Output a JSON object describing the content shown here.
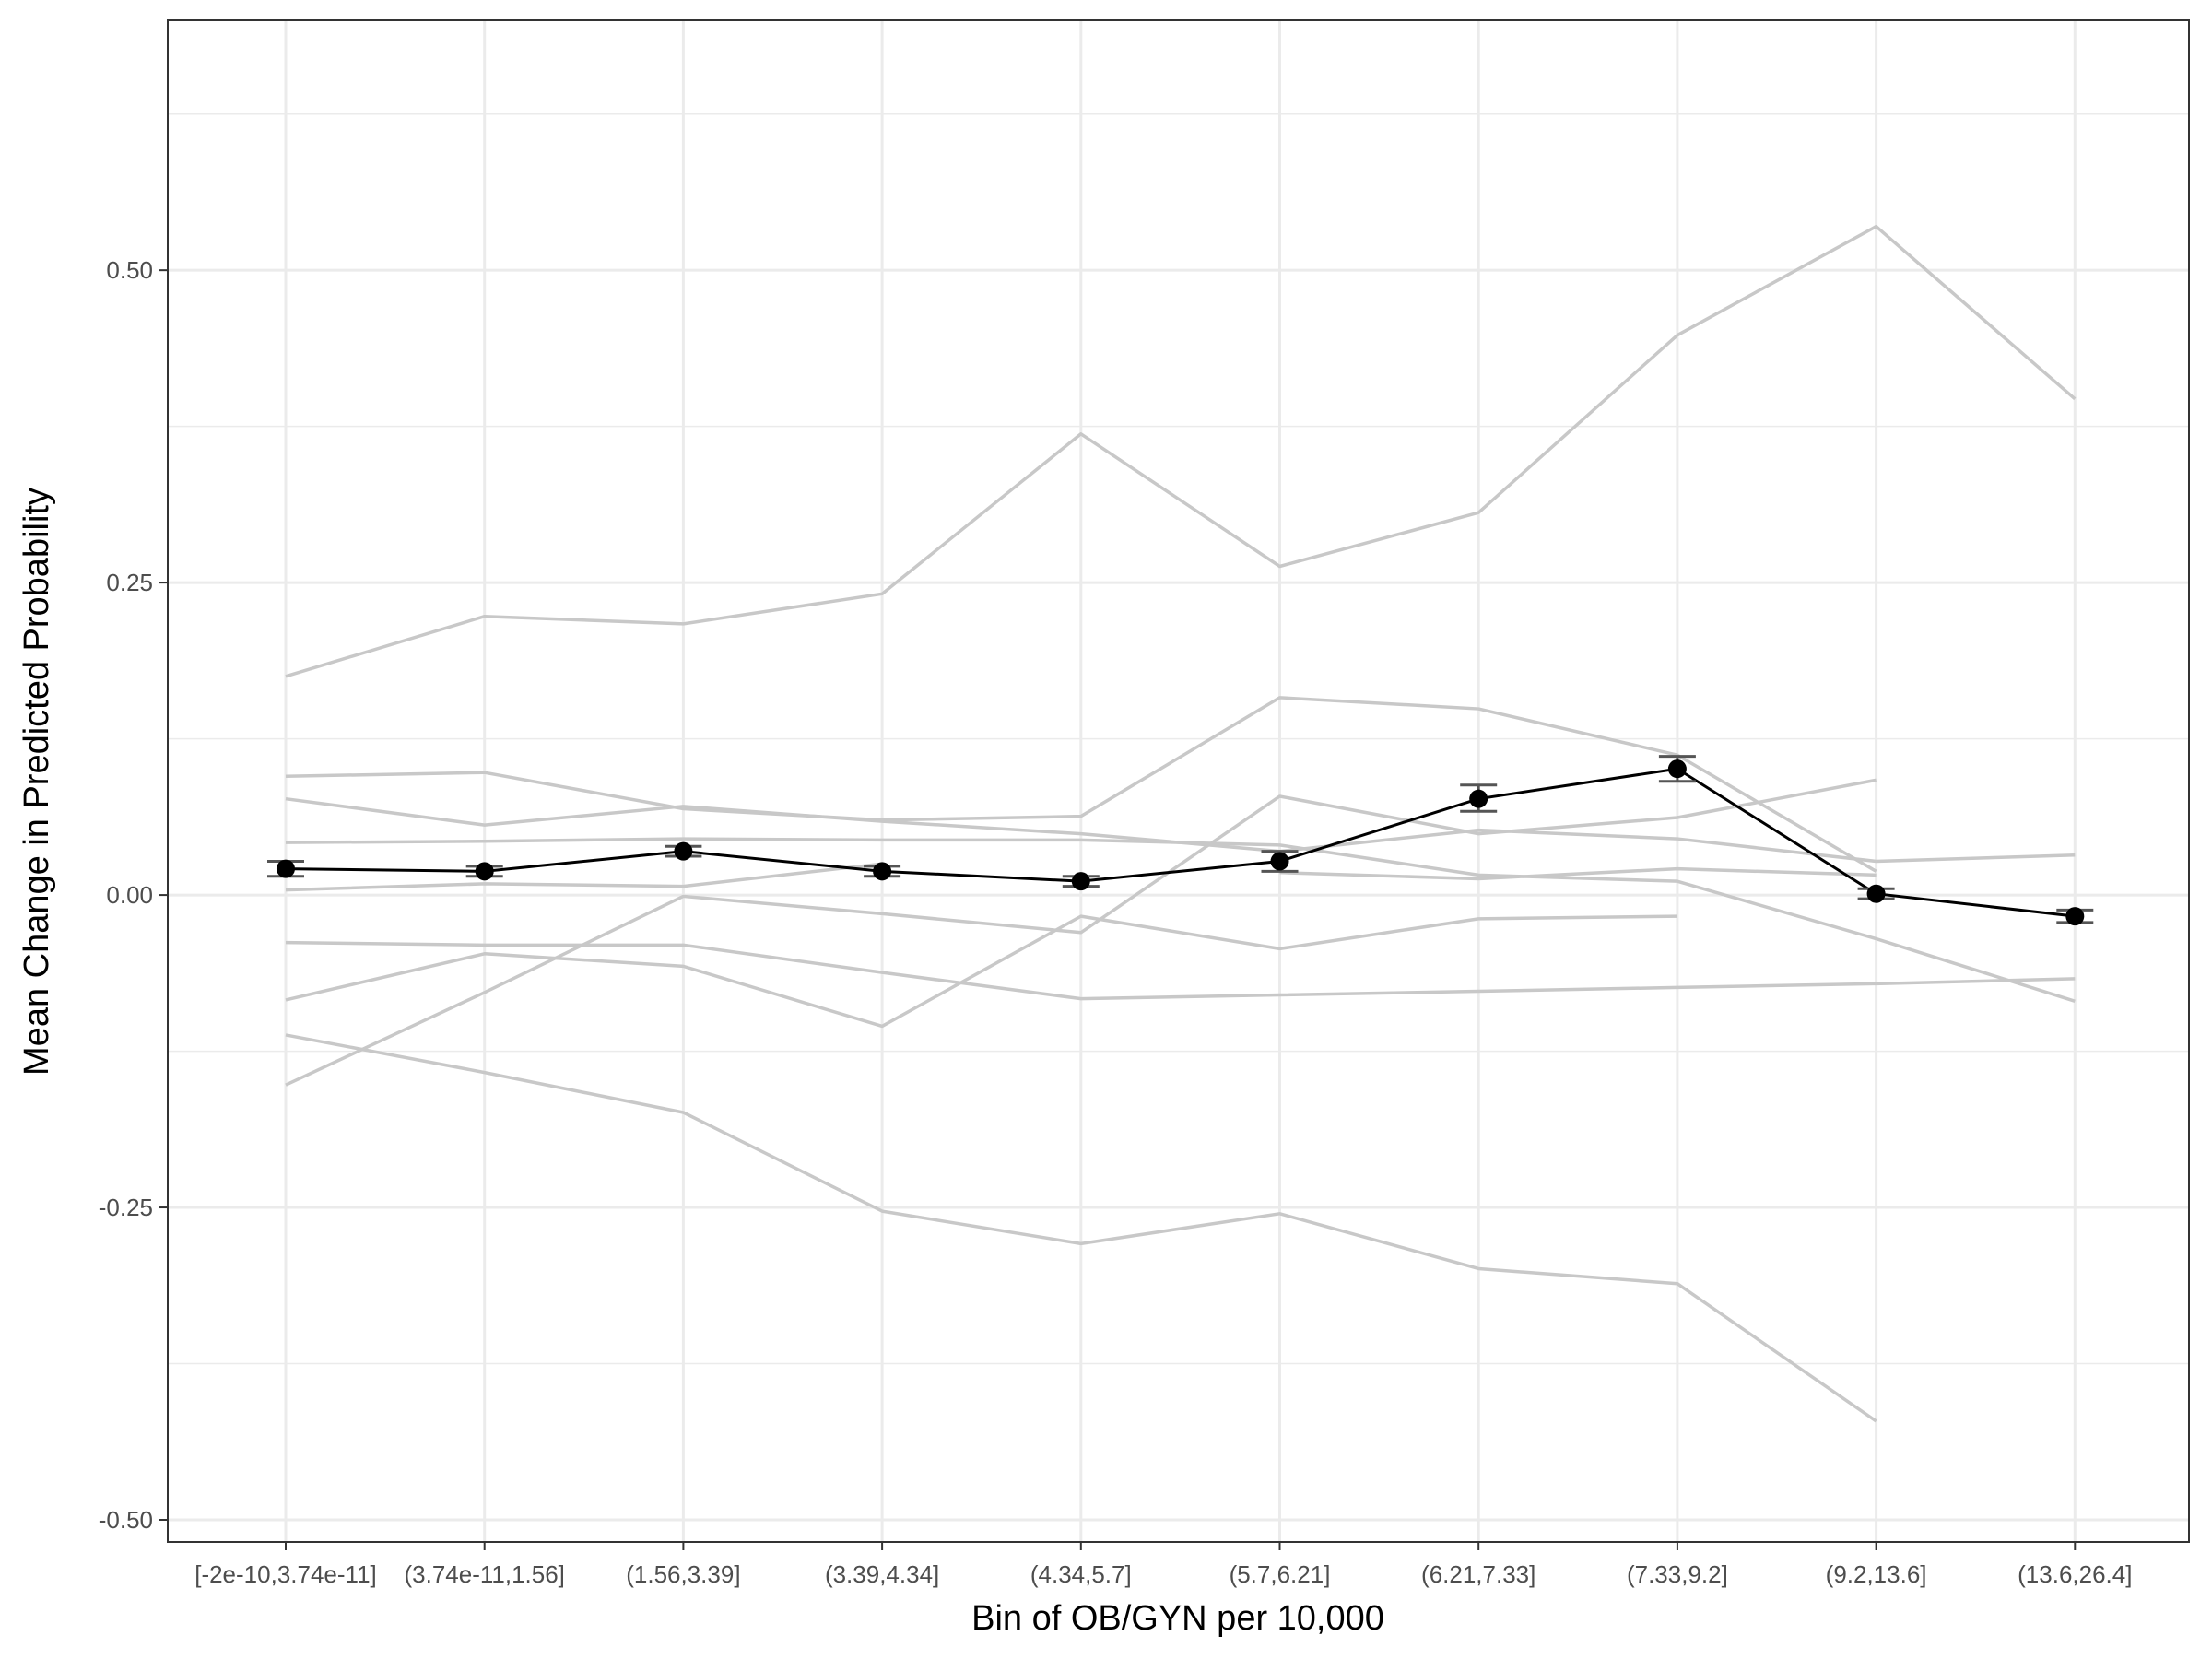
{
  "chart_data": {
    "type": "line",
    "title": "",
    "xlabel": "Bin of OB/GYN per 10,000",
    "ylabel": "Mean Change in Predicted Probability",
    "categories": [
      "[-2e-10,3.74e-11]",
      "(3.74e-11,1.56]",
      "(1.56,3.39]",
      "(3.39,4.34]",
      "(4.34,5.7]",
      "(5.7,6.21]",
      "(6.21,7.33]",
      "(7.33,9.2]",
      "(9.2,13.6]",
      "(13.6,26.4]"
    ],
    "ylim": [
      -0.5,
      0.7
    ],
    "yticks": [
      -0.5,
      -0.25,
      0.0,
      0.25,
      0.5
    ],
    "ytick_labels": [
      "-0.50",
      "-0.25",
      "0.00",
      "0.25",
      "0.50"
    ],
    "grid": true,
    "colors": {
      "mean": "#000000",
      "errorbar": "#555555",
      "background_series": "#c8c8c8",
      "grid": "#ebebeb",
      "panel_border": "#333333"
    },
    "mean_series": {
      "values": [
        0.021,
        0.019,
        0.035,
        0.019,
        0.011,
        0.027,
        0.077,
        0.101,
        0.001,
        -0.017
      ],
      "error_low": [
        0.015,
        0.015,
        0.031,
        0.015,
        0.007,
        0.019,
        0.067,
        0.091,
        -0.003,
        -0.022
      ],
      "error_high": [
        0.027,
        0.023,
        0.039,
        0.023,
        0.015,
        0.035,
        0.088,
        0.111,
        0.005,
        -0.012
      ]
    },
    "background_series": [
      {
        "values": [
          0.175,
          0.223,
          0.217,
          0.241,
          0.369,
          0.263,
          0.306,
          0.448,
          0.535,
          0.397
        ]
      },
      {
        "values": [
          -0.152,
          -0.078,
          -0.001,
          -0.015,
          -0.03,
          0.079,
          0.049,
          0.062,
          0.092,
          null
        ]
      },
      {
        "values": [
          0.095,
          0.098,
          0.069,
          0.06,
          0.063,
          0.158,
          0.149,
          0.112,
          0.019,
          null
        ]
      },
      {
        "values": [
          0.077,
          0.056,
          0.071,
          0.059,
          0.049,
          0.035,
          0.052,
          0.045,
          0.027,
          0.032
        ]
      },
      {
        "values": [
          0.042,
          0.043,
          0.045,
          0.044,
          0.044,
          0.04,
          0.016,
          0.011,
          -0.035,
          -0.085
        ]
      },
      {
        "values": [
          0.004,
          0.009,
          0.007,
          0.025,
          null,
          0.018,
          0.013,
          0.021,
          0.016,
          null
        ]
      },
      {
        "values": [
          -0.038,
          -0.04,
          -0.04,
          -0.062,
          -0.083,
          -0.08,
          -0.077,
          -0.074,
          -0.071,
          -0.067
        ]
      },
      {
        "values": [
          -0.084,
          -0.047,
          -0.057,
          -0.105,
          -0.017,
          -0.043,
          -0.019,
          -0.017,
          null,
          null
        ]
      },
      {
        "values": [
          -0.112,
          -0.142,
          -0.174,
          -0.253,
          -0.279,
          -0.255,
          -0.299,
          -0.311,
          -0.421,
          null
        ]
      }
    ]
  }
}
